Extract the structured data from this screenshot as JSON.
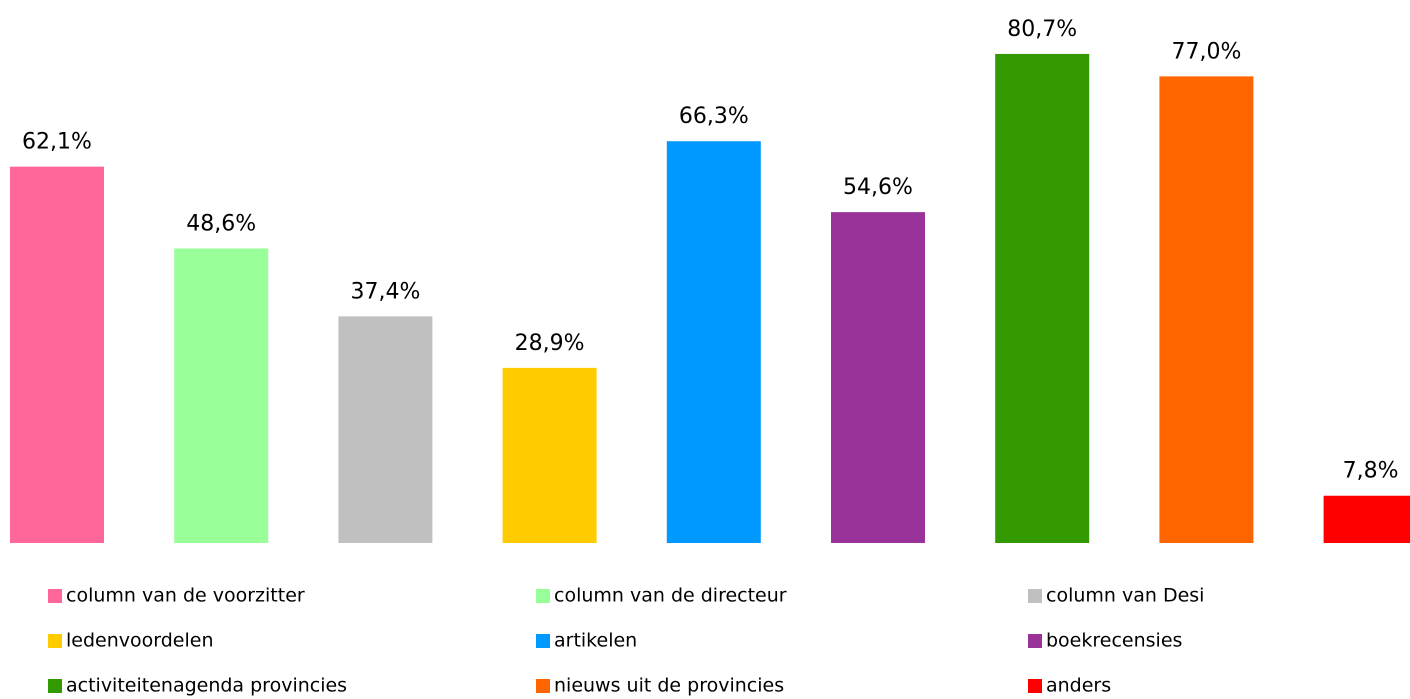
{
  "chart_data": {
    "type": "bar",
    "categories": [
      "column van de voorzitter",
      "column van de directeur",
      "column van Desi",
      "ledenvoordelen",
      "artikelen",
      "boekrecensies",
      "activiteitenagenda provincies",
      "nieuws uit de provincies",
      "anders"
    ],
    "values": [
      62.1,
      48.6,
      37.4,
      28.9,
      66.3,
      54.6,
      80.7,
      77.0,
      7.8
    ],
    "value_labels": [
      "62,1%",
      "48,6%",
      "37,4%",
      "28,9%",
      "66,3%",
      "54,6%",
      "80,7%",
      "77,0%",
      "7,8%"
    ],
    "colors": [
      "#ff6699",
      "#99ff99",
      "#c0c0c0",
      "#ffcc00",
      "#0099ff",
      "#993399",
      "#339900",
      "#ff6600",
      "#ff0000"
    ],
    "legend": "bottom"
  }
}
